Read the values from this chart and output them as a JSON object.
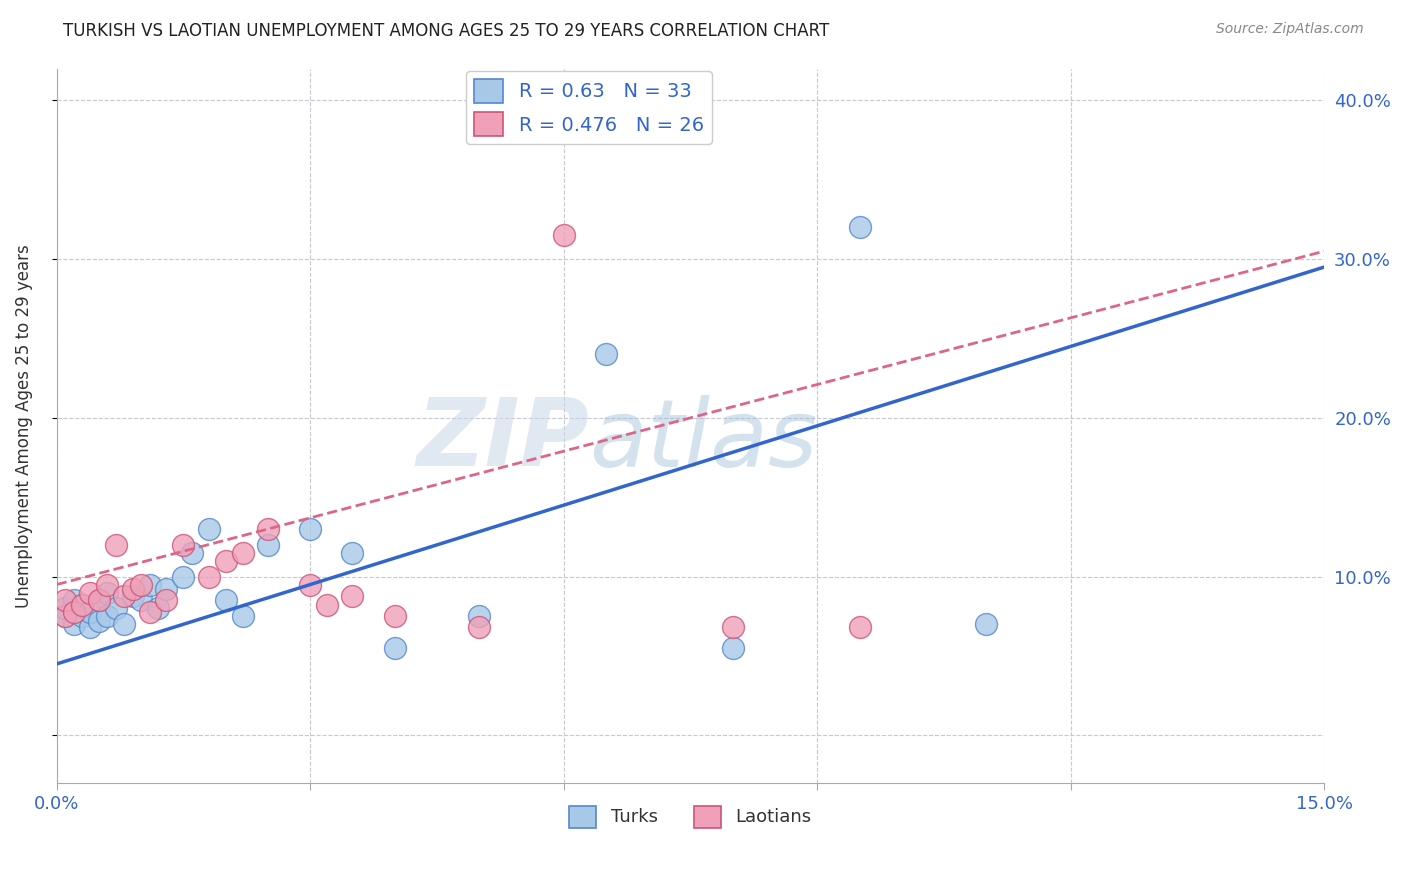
{
  "title": "TURKISH VS LAOTIAN UNEMPLOYMENT AMONG AGES 25 TO 29 YEARS CORRELATION CHART",
  "source": "Source: ZipAtlas.com",
  "ylabel": "Unemployment Among Ages 25 to 29 years",
  "xlim": [
    0.0,
    0.15
  ],
  "ylim": [
    -0.03,
    0.42
  ],
  "xticks": [
    0.0,
    0.03,
    0.06,
    0.09,
    0.12,
    0.15
  ],
  "xticklabels": [
    "0.0%",
    "",
    "",
    "",
    "",
    "15.0%"
  ],
  "yticks": [
    0.0,
    0.1,
    0.2,
    0.3,
    0.4
  ],
  "yticklabels": [
    "",
    "10.0%",
    "20.0%",
    "30.0%",
    "40.0%"
  ],
  "background_color": "#ffffff",
  "grid_color": "#c8c8d0",
  "turks_color": "#a8c8e8",
  "turks_edge_color": "#5588cc",
  "laotians_color": "#f0a0b8",
  "laotians_edge_color": "#cc5577",
  "turks_line_color": "#3366cc",
  "laotians_line_color": "#dd6688",
  "turks_R": 0.63,
  "turks_N": 33,
  "laotians_R": 0.476,
  "laotians_N": 26,
  "legend_text_color": "#3366cc",
  "watermark_zip": "ZIP",
  "watermark_atlas": "atlas",
  "turks_x": [
    0.001,
    0.001,
    0.002,
    0.002,
    0.003,
    0.003,
    0.004,
    0.004,
    0.005,
    0.005,
    0.006,
    0.006,
    0.007,
    0.008,
    0.009,
    0.01,
    0.011,
    0.012,
    0.013,
    0.015,
    0.016,
    0.018,
    0.02,
    0.022,
    0.025,
    0.03,
    0.035,
    0.04,
    0.05,
    0.065,
    0.08,
    0.095,
    0.11
  ],
  "turks_y": [
    0.075,
    0.08,
    0.07,
    0.085,
    0.075,
    0.082,
    0.068,
    0.078,
    0.072,
    0.085,
    0.09,
    0.075,
    0.08,
    0.07,
    0.088,
    0.085,
    0.095,
    0.08,
    0.092,
    0.1,
    0.115,
    0.13,
    0.085,
    0.075,
    0.12,
    0.13,
    0.115,
    0.055,
    0.075,
    0.24,
    0.055,
    0.32,
    0.07
  ],
  "laotians_x": [
    0.001,
    0.001,
    0.002,
    0.003,
    0.004,
    0.005,
    0.006,
    0.007,
    0.008,
    0.009,
    0.01,
    0.011,
    0.013,
    0.015,
    0.018,
    0.02,
    0.022,
    0.025,
    0.03,
    0.032,
    0.035,
    0.04,
    0.05,
    0.06,
    0.08,
    0.095
  ],
  "laotians_y": [
    0.075,
    0.085,
    0.078,
    0.082,
    0.09,
    0.085,
    0.095,
    0.12,
    0.088,
    0.092,
    0.095,
    0.078,
    0.085,
    0.12,
    0.1,
    0.11,
    0.115,
    0.13,
    0.095,
    0.082,
    0.088,
    0.075,
    0.068,
    0.315,
    0.068,
    0.068
  ],
  "turks_line_x0": 0.0,
  "turks_line_y0": 0.045,
  "turks_line_x1": 0.15,
  "turks_line_y1": 0.295,
  "laotians_line_x0": 0.0,
  "laotians_line_y0": 0.095,
  "laotians_line_x1": 0.15,
  "laotians_line_y1": 0.305
}
